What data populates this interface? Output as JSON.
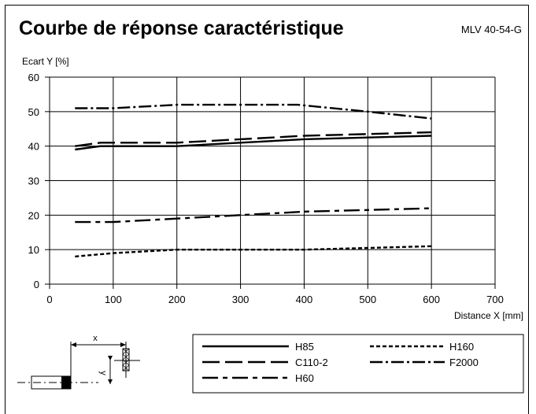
{
  "header": {
    "title": "Courbe de réponse caractéristique",
    "model": "MLV 40-54-G"
  },
  "chart_data": {
    "type": "line",
    "title": "Courbe de réponse caractéristique",
    "xlabel": "Distance X [mm]",
    "ylabel": "Ecart Y [%]",
    "xlim": [
      0,
      700
    ],
    "ylim": [
      0,
      60
    ],
    "x_ticks": [
      0,
      100,
      200,
      300,
      400,
      500,
      600,
      700
    ],
    "y_ticks": [
      0,
      10,
      20,
      30,
      40,
      50,
      60
    ],
    "grid": true,
    "legend_position": "bottom",
    "series": [
      {
        "name": "H85",
        "dash": "solid",
        "points": [
          [
            40,
            39
          ],
          [
            80,
            40
          ],
          [
            200,
            40
          ],
          [
            300,
            41
          ],
          [
            400,
            42
          ],
          [
            500,
            42.5
          ],
          [
            600,
            43
          ]
        ]
      },
      {
        "name": "C110-2",
        "dash": "long-dash",
        "points": [
          [
            40,
            40
          ],
          [
            80,
            41
          ],
          [
            200,
            41
          ],
          [
            300,
            42
          ],
          [
            400,
            43
          ],
          [
            500,
            43.5
          ],
          [
            600,
            44
          ]
        ]
      },
      {
        "name": "H60",
        "dash": "dash-dot",
        "points": [
          [
            40,
            18
          ],
          [
            100,
            18
          ],
          [
            200,
            19
          ],
          [
            300,
            20
          ],
          [
            400,
            21
          ],
          [
            500,
            21.5
          ],
          [
            600,
            22
          ]
        ]
      },
      {
        "name": "H160",
        "dash": "short-dash",
        "points": [
          [
            40,
            8
          ],
          [
            100,
            9
          ],
          [
            200,
            10
          ],
          [
            300,
            10
          ],
          [
            400,
            10
          ],
          [
            500,
            10.5
          ],
          [
            600,
            11
          ]
        ]
      },
      {
        "name": "F2000",
        "dash": "dash-dot-dot",
        "points": [
          [
            40,
            51
          ],
          [
            100,
            51
          ],
          [
            200,
            52
          ],
          [
            300,
            52
          ],
          [
            390,
            52
          ],
          [
            500,
            50
          ],
          [
            600,
            48
          ]
        ]
      }
    ]
  },
  "diagram": {
    "x_label": "x",
    "y_label": "y"
  }
}
